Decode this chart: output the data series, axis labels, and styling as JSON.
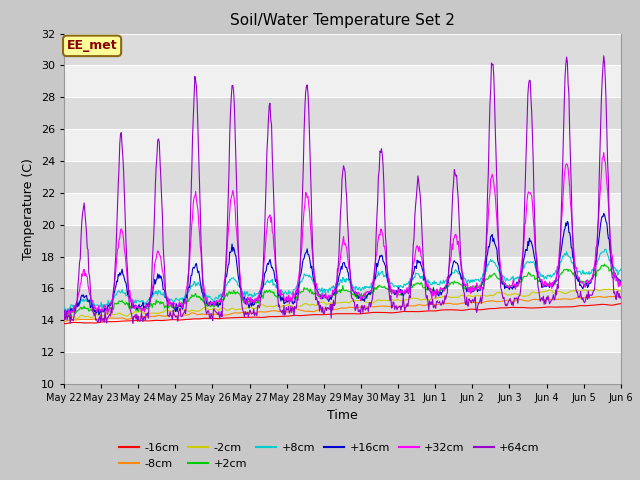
{
  "title": "Soil/Water Temperature Set 2",
  "xlabel": "Time",
  "ylabel": "Temperature (C)",
  "ylim": [
    10,
    32
  ],
  "yticks": [
    10,
    12,
    14,
    16,
    18,
    20,
    22,
    24,
    26,
    28,
    30,
    32
  ],
  "annotation_text": "EE_met",
  "annotation_color": "#8B0000",
  "annotation_bg": "#FFFF99",
  "series": [
    {
      "label": "-16cm",
      "color": "#FF0000"
    },
    {
      "label": "-8cm",
      "color": "#FF8800"
    },
    {
      "label": "-2cm",
      "color": "#CCCC00"
    },
    {
      "label": "+2cm",
      "color": "#00CC00"
    },
    {
      "label": "+8cm",
      "color": "#00CCCC"
    },
    {
      "label": "+16cm",
      "color": "#0000CC"
    },
    {
      "label": "+32cm",
      "color": "#FF00FF"
    },
    {
      "label": "+64cm",
      "color": "#9900CC"
    }
  ],
  "day_labels": [
    "May 22",
    "May 23",
    "May 24",
    "May 25",
    "May 26",
    "May 27",
    "May 28",
    "May 29",
    "May 30",
    "May 31",
    "Jun 1",
    "Jun 2",
    "Jun 3",
    "Jun 4",
    "Jun 5",
    "Jun 6"
  ],
  "n_days": 15,
  "points_per_day": 48,
  "figsize": [
    6.4,
    4.8
  ],
  "dpi": 100
}
